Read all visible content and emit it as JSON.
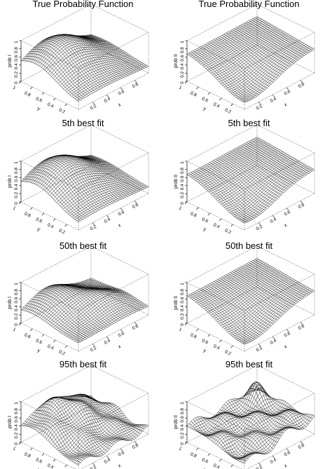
{
  "chart_data": [
    {
      "type": "surface",
      "title": "True Probability Function",
      "zlabel": "prob I",
      "xlabel": "x",
      "ylabel": "y",
      "surface": "hill"
    },
    {
      "type": "surface",
      "title": "True Probability Function",
      "zlabel": "prob II",
      "xlabel": "x",
      "ylabel": "y",
      "surface": "valley"
    },
    {
      "type": "surface",
      "title": "5th best fit",
      "zlabel": "prob I",
      "xlabel": "x",
      "ylabel": "y",
      "surface": "hill"
    },
    {
      "type": "surface",
      "title": "5th best fit",
      "zlabel": "prob II",
      "xlabel": "x",
      "ylabel": "y",
      "surface": "valley"
    },
    {
      "type": "surface",
      "title": "50th best fit",
      "zlabel": "prob I",
      "xlabel": "x",
      "ylabel": "y",
      "surface": "hill2"
    },
    {
      "type": "surface",
      "title": "50th best fit",
      "zlabel": "prob II",
      "xlabel": "x",
      "ylabel": "y",
      "surface": "valley"
    },
    {
      "type": "surface",
      "title": "95th best fit",
      "zlabel": "prob I",
      "xlabel": "x",
      "ylabel": "y",
      "surface": "hill3"
    },
    {
      "type": "surface",
      "title": "95th best fit",
      "zlabel": "prob II",
      "xlabel": "x",
      "ylabel": "y",
      "surface": "bumpy"
    }
  ],
  "axes": {
    "x_ticks": [
      "0.2",
      "0.4",
      "0.6",
      "0.8"
    ],
    "y_ticks": [
      "0.2",
      "0.4",
      "0.6",
      "0.8",
      "1"
    ],
    "z_ticks": [
      "0",
      "0.2",
      "0.4",
      "0.6",
      "0.8",
      "1"
    ],
    "x_range": [
      0,
      1
    ],
    "y_range": [
      0,
      1
    ],
    "z_range": [
      0,
      1
    ]
  },
  "colors": {
    "mesh": "#000000",
    "box": "#555555",
    "background": "#ffffff"
  }
}
